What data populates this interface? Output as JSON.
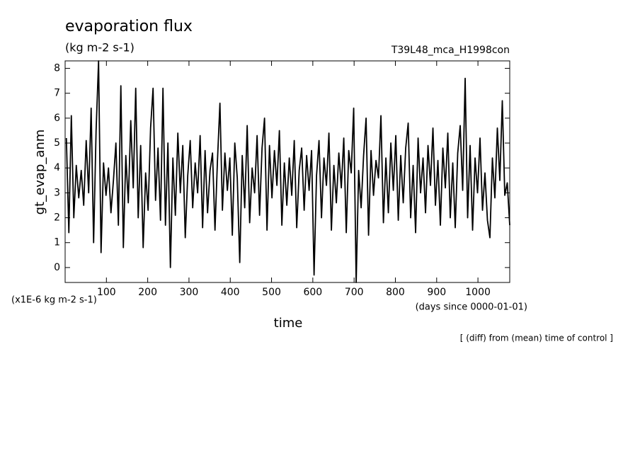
{
  "chart_data": {
    "type": "line",
    "title": "evaporation flux",
    "subtitle": "(kg m-2 s-1)",
    "run_label": "T39L48_mca_H1998con",
    "y_label": "gt_evap_anm",
    "y_unit": "(x1E-6 kg m-2 s-1)",
    "x_label": "time",
    "x_unit": "(days since 0000-01-01)",
    "note": "[ (diff) from (mean) time of control ]",
    "color": "#000000",
    "xlim": [
      0,
      1077
    ],
    "ylim": [
      -0.6,
      8.3
    ],
    "xticks": [
      100,
      200,
      300,
      400,
      500,
      600,
      700,
      800,
      900,
      1000
    ],
    "yticks": [
      0,
      1,
      2,
      3,
      4,
      5,
      6,
      7,
      8
    ],
    "x": [
      3,
      9,
      15,
      21,
      27,
      33,
      39,
      45,
      51,
      57,
      63,
      69,
      75,
      81,
      87,
      93,
      99,
      105,
      111,
      117,
      123,
      129,
      135,
      141,
      147,
      153,
      159,
      165,
      171,
      177,
      183,
      189,
      195,
      201,
      207,
      213,
      219,
      225,
      231,
      237,
      243,
      249,
      255,
      261,
      267,
      273,
      279,
      285,
      291,
      297,
      303,
      309,
      315,
      321,
      327,
      333,
      339,
      345,
      351,
      357,
      363,
      369,
      375,
      381,
      387,
      393,
      399,
      405,
      411,
      417,
      423,
      429,
      435,
      441,
      447,
      453,
      459,
      465,
      471,
      477,
      483,
      489,
      495,
      501,
      507,
      513,
      519,
      525,
      531,
      537,
      543,
      549,
      555,
      561,
      567,
      573,
      579,
      585,
      591,
      597,
      603,
      609,
      615,
      621,
      627,
      633,
      639,
      645,
      651,
      657,
      663,
      669,
      675,
      681,
      687,
      693,
      699,
      705,
      711,
      717,
      723,
      729,
      735,
      741,
      747,
      753,
      759,
      765,
      771,
      777,
      783,
      789,
      795,
      801,
      807,
      813,
      819,
      825,
      831,
      837,
      843,
      849,
      855,
      861,
      867,
      873,
      879,
      885,
      891,
      897,
      903,
      909,
      915,
      921,
      927,
      933,
      939,
      945,
      951,
      957,
      963,
      969,
      975,
      981,
      987,
      993,
      999,
      1005,
      1011,
      1017,
      1023,
      1029,
      1035,
      1041,
      1047,
      1053,
      1059,
      1065,
      1071,
      1077
    ],
    "values": [
      5.2,
      1.4,
      6.1,
      2.0,
      4.1,
      2.8,
      3.9,
      2.5,
      5.1,
      3.0,
      6.4,
      1.0,
      5.5,
      8.3,
      0.6,
      4.2,
      2.9,
      4.0,
      2.2,
      3.5,
      5.0,
      1.7,
      7.3,
      0.8,
      4.5,
      2.6,
      5.9,
      3.2,
      7.2,
      2.0,
      4.9,
      0.8,
      3.8,
      2.3,
      5.6,
      7.2,
      2.7,
      4.8,
      1.9,
      7.2,
      1.7,
      5.0,
      0.0,
      4.4,
      2.1,
      5.4,
      3.0,
      4.9,
      1.2,
      3.7,
      5.1,
      2.4,
      4.2,
      3.0,
      5.3,
      1.6,
      4.7,
      2.2,
      3.9,
      4.6,
      1.5,
      4.3,
      6.6,
      2.3,
      4.6,
      3.1,
      4.4,
      1.3,
      5.0,
      3.6,
      0.2,
      4.5,
      2.4,
      5.7,
      1.8,
      4.0,
      3.0,
      5.3,
      2.1,
      4.8,
      6.0,
      1.5,
      4.9,
      2.8,
      4.7,
      3.3,
      5.5,
      1.7,
      4.2,
      2.5,
      4.4,
      2.9,
      5.1,
      1.6,
      3.9,
      4.8,
      2.3,
      4.5,
      3.1,
      4.7,
      -0.3,
      3.7,
      5.1,
      2.0,
      4.4,
      3.3,
      5.4,
      1.5,
      4.1,
      2.6,
      4.6,
      3.2,
      5.2,
      1.4,
      4.7,
      3.8,
      6.4,
      -0.6,
      3.9,
      2.4,
      4.5,
      6.0,
      1.3,
      4.7,
      2.9,
      4.3,
      3.6,
      6.1,
      1.8,
      4.4,
      2.2,
      5.0,
      3.1,
      5.3,
      1.9,
      4.5,
      2.6,
      4.8,
      5.8,
      2.0,
      4.1,
      1.4,
      5.2,
      3.0,
      4.4,
      2.2,
      4.9,
      3.3,
      5.6,
      2.5,
      4.3,
      1.7,
      4.8,
      3.2,
      5.4,
      2.0,
      4.2,
      1.6,
      4.6,
      5.7,
      3.1,
      7.6,
      2.0,
      4.9,
      1.5,
      4.4,
      3.0,
      5.2,
      2.3,
      3.8,
      1.9,
      1.2,
      4.4,
      2.8,
      5.6,
      3.5,
      6.7,
      2.9,
      3.4,
      1.7
    ]
  }
}
